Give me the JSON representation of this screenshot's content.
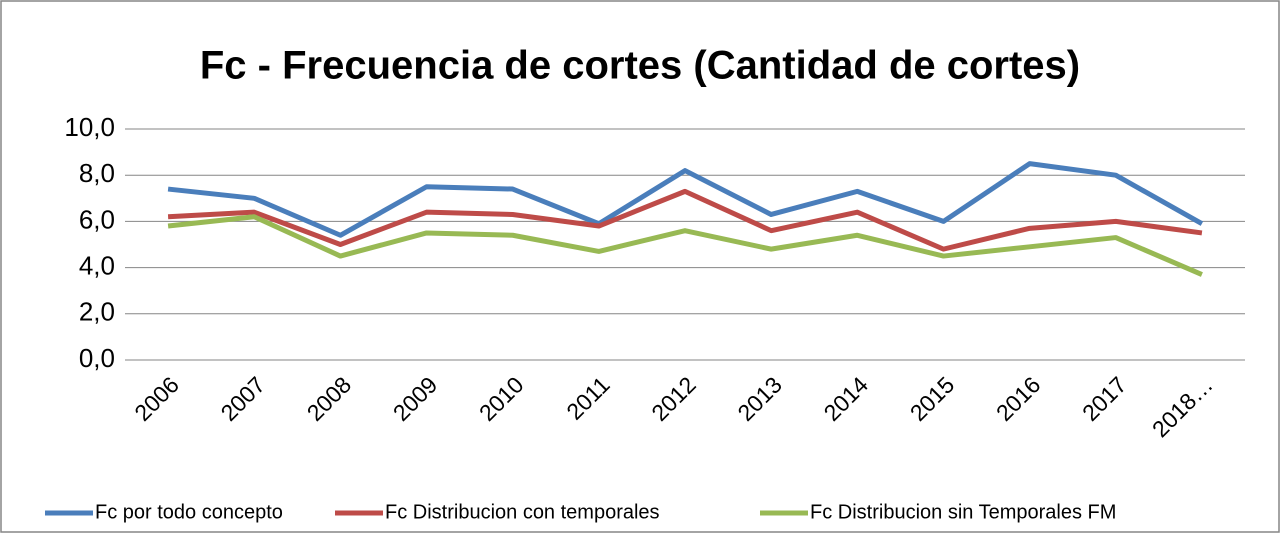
{
  "chart_data": {
    "type": "line",
    "title": "Fc - Frecuencia de cortes (Cantidad de cortes)",
    "categories": [
      "2006",
      "2007",
      "2008",
      "2009",
      "2010",
      "2011",
      "2012",
      "2013",
      "2014",
      "2015",
      "2016",
      "2017",
      "2018…"
    ],
    "series": [
      {
        "name": "Fc por todo concepto",
        "color": "#4a7ebb",
        "values": [
          7.4,
          7.0,
          5.4,
          7.5,
          7.4,
          5.9,
          8.2,
          6.3,
          7.3,
          6.0,
          8.5,
          8.0,
          5.9
        ]
      },
      {
        "name": "Fc Distribucion con temporales",
        "color": "#be4b48",
        "values": [
          6.2,
          6.4,
          5.0,
          6.4,
          6.3,
          5.8,
          7.3,
          5.6,
          6.4,
          4.8,
          5.7,
          6.0,
          5.5
        ]
      },
      {
        "name": "Fc Distribucion sin Temporales FM",
        "color": "#98b954",
        "values": [
          5.8,
          6.2,
          4.5,
          5.5,
          5.4,
          4.7,
          5.6,
          4.8,
          5.4,
          4.5,
          4.9,
          5.3,
          3.7
        ]
      }
    ],
    "ylim": [
      0,
      10
    ],
    "yticks": [
      {
        "value": 0,
        "label": "0,0"
      },
      {
        "value": 2,
        "label": "2,0"
      },
      {
        "value": 4,
        "label": "4,0"
      },
      {
        "value": 6,
        "label": "6,0"
      },
      {
        "value": 8,
        "label": "8,0"
      },
      {
        "value": 10,
        "label": "10,0"
      }
    ],
    "grid": true,
    "legend": "bottom"
  }
}
